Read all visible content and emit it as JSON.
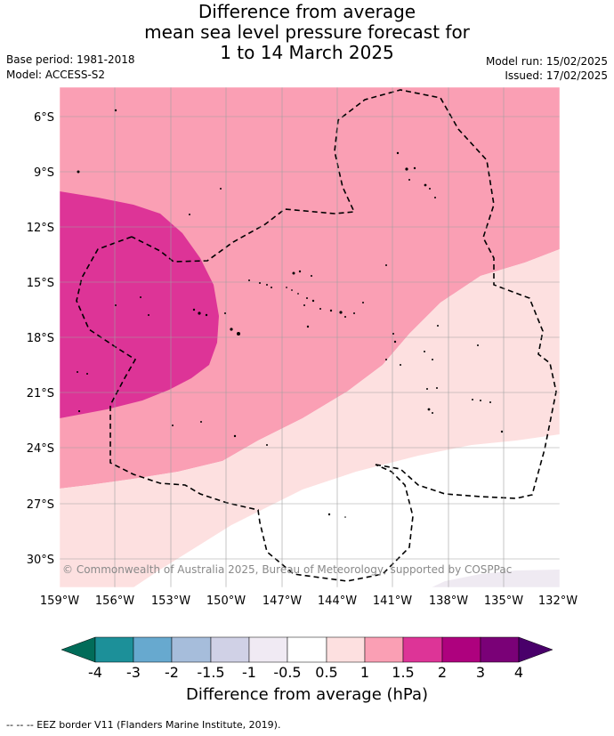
{
  "title": {
    "line1": "Difference from average",
    "line2": "mean sea level pressure forecast for",
    "line3": "1 to 14 March 2025"
  },
  "meta": {
    "base_period": "Base period: 1981-2018",
    "model": "Model: ACCESS-S2",
    "model_run": "Model run: 15/02/2025",
    "issued": "Issued: 17/02/2025"
  },
  "map": {
    "lat_labels": [
      "6°S",
      "9°S",
      "12°S",
      "15°S",
      "18°S",
      "21°S",
      "24°S",
      "27°S",
      "30°S"
    ],
    "lon_labels": [
      "159°W",
      "156°W",
      "153°W",
      "150°W",
      "147°W",
      "144°W",
      "141°W",
      "138°W",
      "135°W",
      "132°W"
    ],
    "credit": "© Commonwealth of Australia 2025, Bureau of Meteorology, supported by COSPPac",
    "colors": {
      "level_0_5_to_1": "#fde0e0",
      "level_1_to_1_5": "#fa9fb4",
      "level_1_5_to_2": "#dd3497",
      "level_neg_0_5_to_neg_1": "#efeaf2"
    }
  },
  "colorbar": {
    "ticks": [
      "-4",
      "-3",
      "-2",
      "-1.5",
      "-1",
      "-0.5",
      "0.5",
      "1",
      "1.5",
      "2",
      "3",
      "4"
    ],
    "colors": [
      "#016c59",
      "#1c9099",
      "#67a9cf",
      "#a6bddb",
      "#d0d1e6",
      "#f0eaf3",
      "#ffffff",
      "#fde0e0",
      "#fa9fb4",
      "#dd3497",
      "#ae017e",
      "#7a0177",
      "#49006a"
    ],
    "label": "Difference from average (hPa)"
  },
  "footer": "--  --  -- EEZ border V11 (Flanders Marine Institute, 2019)."
}
